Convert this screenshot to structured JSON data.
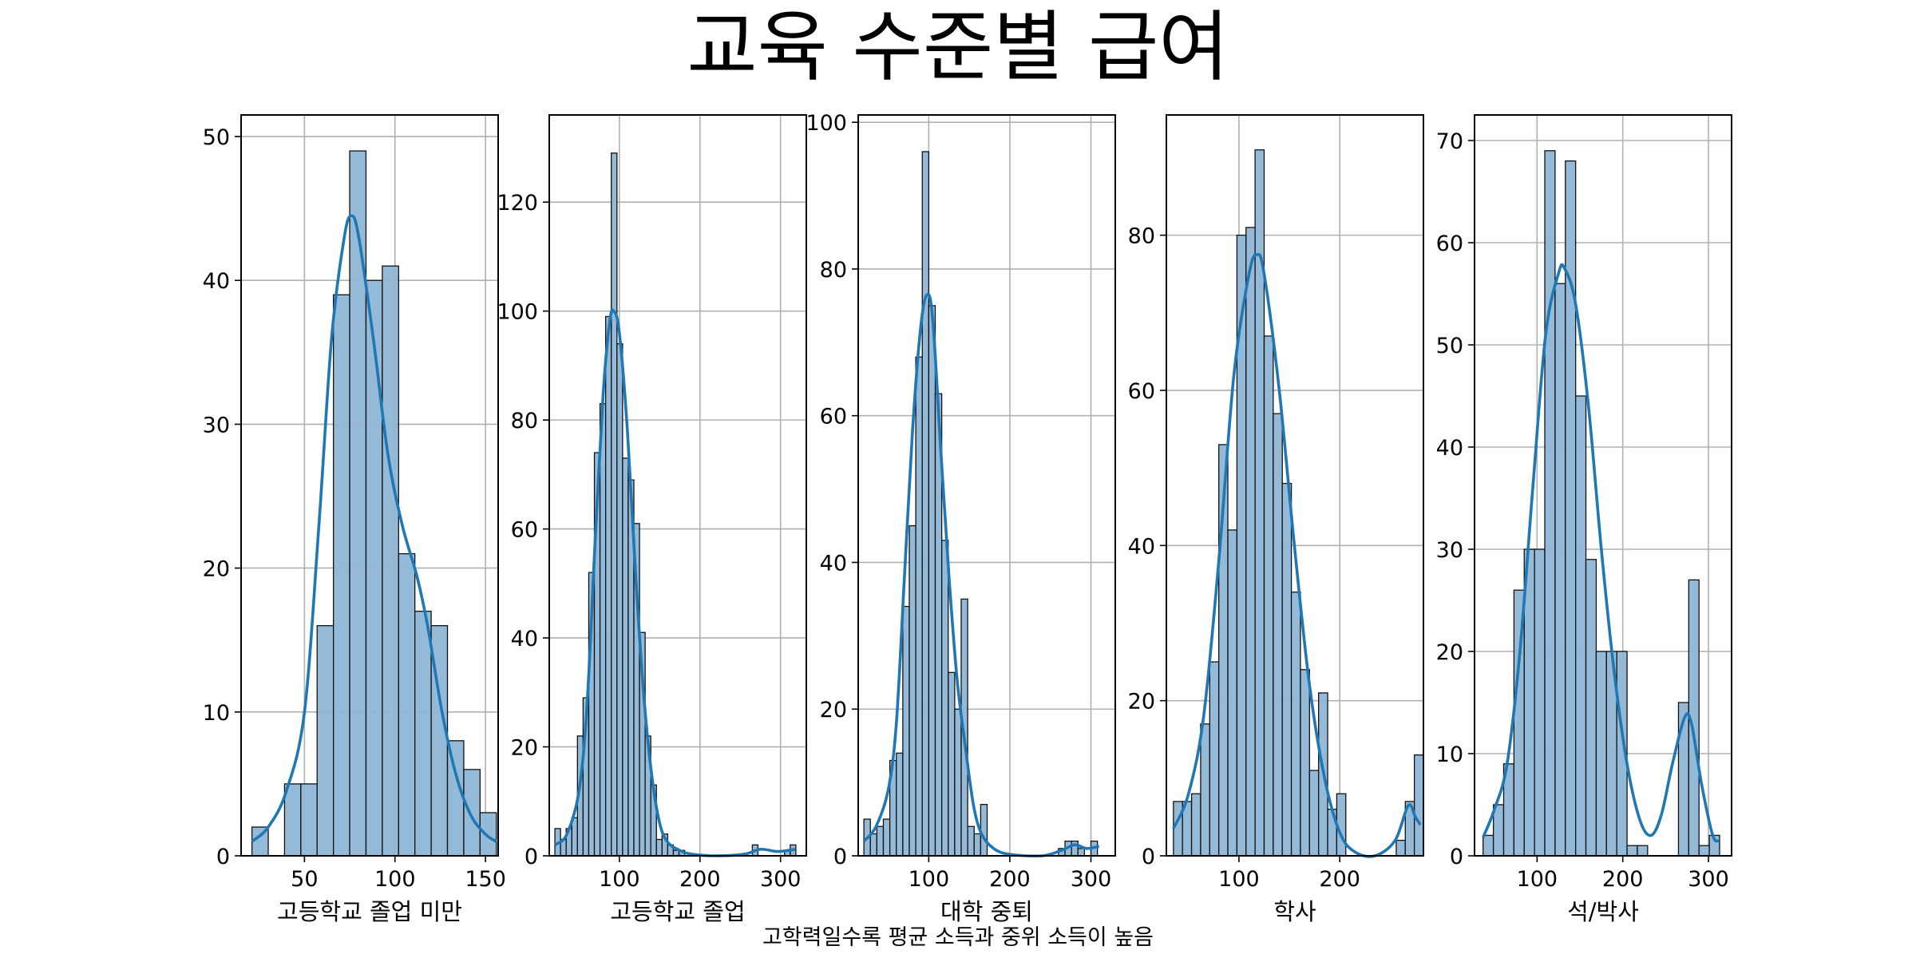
{
  "title": "교육 수준별 급여",
  "caption": "고학력일수록 평균 소득과 중위 소득이 높음",
  "colors": {
    "bar": "#8fb6d6",
    "bar_edge": "#111111",
    "kde": "#1f77b4",
    "grid": "#b0b0b0",
    "frame": "#000000"
  },
  "chart_data": [
    {
      "type": "bar",
      "subtype": "histogram_with_kde",
      "xlabel": "고등학교 졸업 미만",
      "xlim": [
        15,
        157
      ],
      "ylim": [
        0,
        51.5
      ],
      "xticks": [
        50,
        100,
        150
      ],
      "yticks": [
        0,
        10,
        20,
        30,
        40,
        50
      ],
      "grid": true,
      "bins": [
        [
          21,
          30,
          2
        ],
        [
          30,
          39,
          0
        ],
        [
          39,
          48,
          5
        ],
        [
          48,
          57,
          5
        ],
        [
          57,
          66,
          16
        ],
        [
          66,
          75,
          39
        ],
        [
          75,
          84,
          49
        ],
        [
          84,
          93,
          40
        ],
        [
          93,
          102,
          41
        ],
        [
          102,
          111,
          21
        ],
        [
          111,
          120,
          17
        ],
        [
          120,
          129,
          16
        ],
        [
          129,
          138,
          8
        ],
        [
          138,
          147,
          6
        ],
        [
          147,
          156,
          3
        ]
      ],
      "kde": [
        [
          21,
          1.0
        ],
        [
          30,
          2.0
        ],
        [
          40,
          4.5
        ],
        [
          50,
          10
        ],
        [
          58,
          23
        ],
        [
          65,
          36
        ],
        [
          72,
          43
        ],
        [
          76,
          44.5
        ],
        [
          80,
          43
        ],
        [
          88,
          36
        ],
        [
          96,
          28
        ],
        [
          104,
          23
        ],
        [
          112,
          19.5
        ],
        [
          118,
          16
        ],
        [
          126,
          10
        ],
        [
          134,
          5.5
        ],
        [
          142,
          2.8
        ],
        [
          150,
          1.5
        ],
        [
          156,
          1.0
        ]
      ]
    },
    {
      "type": "bar",
      "subtype": "histogram_with_kde",
      "xlabel": "고등학교 졸업",
      "xlim": [
        13,
        332
      ],
      "ylim": [
        0,
        136
      ],
      "xticks": [
        100,
        200,
        300
      ],
      "yticks": [
        0,
        20,
        40,
        60,
        80,
        100,
        120
      ],
      "grid": true,
      "bins": [
        [
          20,
          27,
          5
        ],
        [
          27,
          34,
          3
        ],
        [
          34,
          41,
          5
        ],
        [
          41,
          48,
          7
        ],
        [
          48,
          55,
          22
        ],
        [
          55,
          62,
          29
        ],
        [
          62,
          69,
          52
        ],
        [
          69,
          76,
          74
        ],
        [
          76,
          83,
          83
        ],
        [
          83,
          90,
          99
        ],
        [
          90,
          97,
          129
        ],
        [
          97,
          104,
          94
        ],
        [
          104,
          111,
          73
        ],
        [
          111,
          118,
          69
        ],
        [
          118,
          125,
          61
        ],
        [
          125,
          132,
          41
        ],
        [
          132,
          139,
          22
        ],
        [
          139,
          146,
          13
        ],
        [
          146,
          153,
          3
        ],
        [
          153,
          160,
          4
        ],
        [
          160,
          167,
          2
        ],
        [
          167,
          174,
          1
        ],
        [
          174,
          181,
          1
        ],
        [
          265,
          272,
          2
        ],
        [
          305,
          312,
          1
        ],
        [
          312,
          319,
          2
        ]
      ],
      "kde": [
        [
          20,
          2
        ],
        [
          35,
          4
        ],
        [
          50,
          12
        ],
        [
          60,
          28
        ],
        [
          70,
          58
        ],
        [
          80,
          85
        ],
        [
          88,
          98
        ],
        [
          93,
          100
        ],
        [
          100,
          96
        ],
        [
          110,
          78
        ],
        [
          120,
          52
        ],
        [
          130,
          30
        ],
        [
          140,
          15
        ],
        [
          150,
          6
        ],
        [
          160,
          2.5
        ],
        [
          175,
          1
        ],
        [
          190,
          0.3
        ],
        [
          220,
          0
        ],
        [
          255,
          0.3
        ],
        [
          275,
          1.2
        ],
        [
          295,
          0.8
        ],
        [
          310,
          1.0
        ],
        [
          318,
          1.2
        ]
      ]
    },
    {
      "type": "bar",
      "subtype": "histogram_with_kde",
      "xlabel": "대학 중퇴",
      "xlim": [
        13,
        330
      ],
      "ylim": [
        0,
        101
      ],
      "xticks": [
        100,
        200,
        300
      ],
      "yticks": [
        0,
        20,
        40,
        60,
        80,
        100
      ],
      "grid": true,
      "bins": [
        [
          20,
          28,
          5
        ],
        [
          28,
          36,
          3
        ],
        [
          36,
          44,
          4
        ],
        [
          44,
          52,
          5
        ],
        [
          52,
          60,
          13
        ],
        [
          60,
          68,
          14
        ],
        [
          68,
          76,
          34
        ],
        [
          76,
          84,
          45
        ],
        [
          84,
          92,
          68
        ],
        [
          92,
          100,
          96
        ],
        [
          100,
          108,
          75
        ],
        [
          108,
          116,
          63
        ],
        [
          116,
          124,
          43
        ],
        [
          124,
          132,
          25
        ],
        [
          132,
          140,
          20
        ],
        [
          140,
          148,
          35
        ],
        [
          148,
          156,
          4
        ],
        [
          156,
          164,
          3
        ],
        [
          164,
          172,
          7
        ],
        [
          260,
          268,
          1
        ],
        [
          268,
          276,
          2
        ],
        [
          276,
          284,
          2
        ],
        [
          284,
          292,
          1
        ],
        [
          300,
          308,
          2
        ]
      ],
      "kde": [
        [
          20,
          2
        ],
        [
          35,
          4
        ],
        [
          50,
          9
        ],
        [
          60,
          18
        ],
        [
          70,
          38
        ],
        [
          80,
          58
        ],
        [
          90,
          72
        ],
        [
          98,
          76.5
        ],
        [
          105,
          73
        ],
        [
          115,
          55
        ],
        [
          125,
          38
        ],
        [
          135,
          24
        ],
        [
          145,
          15
        ],
        [
          155,
          7
        ],
        [
          165,
          3
        ],
        [
          180,
          1
        ],
        [
          200,
          0.2
        ],
        [
          240,
          0
        ],
        [
          265,
          0.8
        ],
        [
          280,
          1.5
        ],
        [
          295,
          1.0
        ],
        [
          310,
          1.3
        ]
      ]
    },
    {
      "type": "bar",
      "subtype": "histogram_with_kde",
      "xlabel": "학사",
      "xlim": [
        28,
        283
      ],
      "ylim": [
        0,
        95.5
      ],
      "xticks": [
        100,
        200
      ],
      "yticks": [
        0,
        20,
        40,
        60,
        80
      ],
      "grid": true,
      "bins": [
        [
          35,
          44,
          7
        ],
        [
          44,
          53,
          7
        ],
        [
          53,
          62,
          8
        ],
        [
          62,
          71,
          17
        ],
        [
          71,
          80,
          25
        ],
        [
          80,
          89,
          53
        ],
        [
          89,
          98,
          42
        ],
        [
          98,
          107,
          80
        ],
        [
          107,
          116,
          81
        ],
        [
          116,
          125,
          91
        ],
        [
          125,
          134,
          67
        ],
        [
          134,
          143,
          57
        ],
        [
          143,
          152,
          48
        ],
        [
          152,
          161,
          34
        ],
        [
          161,
          170,
          24
        ],
        [
          170,
          179,
          11
        ],
        [
          179,
          188,
          21
        ],
        [
          188,
          197,
          6
        ],
        [
          197,
          206,
          8
        ],
        [
          256,
          265,
          2
        ],
        [
          265,
          274,
          7
        ],
        [
          274,
          283,
          13
        ]
      ],
      "kde": [
        [
          35,
          3.5
        ],
        [
          50,
          8
        ],
        [
          65,
          18
        ],
        [
          80,
          38
        ],
        [
          95,
          62
        ],
        [
          110,
          75
        ],
        [
          118,
          77.5
        ],
        [
          125,
          75
        ],
        [
          140,
          60
        ],
        [
          155,
          40
        ],
        [
          170,
          22
        ],
        [
          185,
          10
        ],
        [
          200,
          3
        ],
        [
          215,
          0.5
        ],
        [
          235,
          0
        ],
        [
          255,
          2
        ],
        [
          268,
          6.5
        ],
        [
          275,
          5
        ],
        [
          280,
          4
        ]
      ]
    },
    {
      "type": "bar",
      "subtype": "histogram_with_kde",
      "xlabel": "석/박사",
      "xlim": [
        27,
        327
      ],
      "ylim": [
        0,
        72.5
      ],
      "xticks": [
        100,
        200,
        300
      ],
      "yticks": [
        0,
        10,
        20,
        30,
        40,
        50,
        60,
        70
      ],
      "grid": true,
      "bins": [
        [
          37,
          49,
          2
        ],
        [
          49,
          61,
          5
        ],
        [
          61,
          73,
          9
        ],
        [
          73,
          85,
          26
        ],
        [
          85,
          97,
          30
        ],
        [
          97,
          109,
          30
        ],
        [
          109,
          121,
          69
        ],
        [
          121,
          133,
          56
        ],
        [
          133,
          145,
          68
        ],
        [
          145,
          157,
          45
        ],
        [
          157,
          169,
          29
        ],
        [
          169,
          181,
          20
        ],
        [
          181,
          193,
          20
        ],
        [
          193,
          205,
          20
        ],
        [
          205,
          217,
          1
        ],
        [
          217,
          229,
          1
        ],
        [
          265,
          277,
          15
        ],
        [
          277,
          289,
          27
        ],
        [
          289,
          301,
          1
        ],
        [
          301,
          313,
          2
        ]
      ],
      "kde": [
        [
          37,
          1.8
        ],
        [
          50,
          4.5
        ],
        [
          65,
          9
        ],
        [
          80,
          20
        ],
        [
          95,
          36
        ],
        [
          110,
          51
        ],
        [
          125,
          57
        ],
        [
          132,
          57.5
        ],
        [
          145,
          54
        ],
        [
          160,
          44
        ],
        [
          175,
          30
        ],
        [
          190,
          18
        ],
        [
          205,
          9
        ],
        [
          220,
          3.5
        ],
        [
          233,
          2
        ],
        [
          245,
          4
        ],
        [
          258,
          9
        ],
        [
          272,
          13.5
        ],
        [
          280,
          13
        ],
        [
          292,
          7
        ],
        [
          305,
          2
        ],
        [
          313,
          1.5
        ]
      ]
    }
  ]
}
